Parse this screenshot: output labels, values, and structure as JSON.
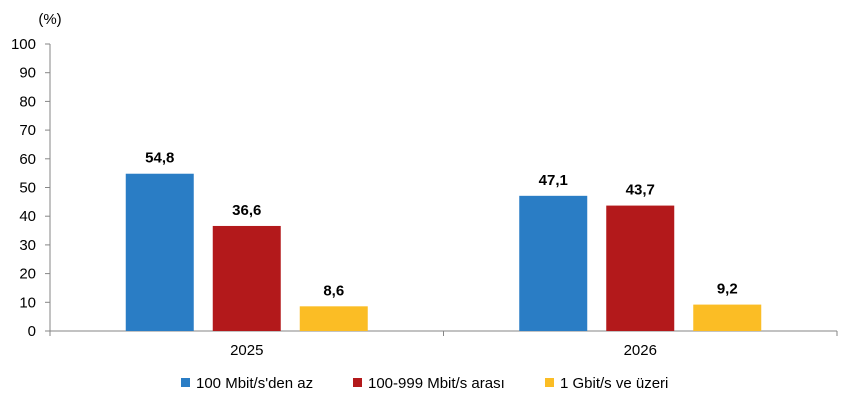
{
  "chart_data": {
    "type": "bar",
    "unit_label": "(%)",
    "categories": [
      "2025",
      "2026"
    ],
    "series": [
      {
        "name": "100 Mbit/s'den az",
        "color": "#2a7dc5",
        "values": [
          54.8,
          47.1
        ],
        "labels": [
          "54,8",
          "47,1"
        ]
      },
      {
        "name": "100-999 Mbit/s arası",
        "color": "#b3191b",
        "values": [
          36.6,
          43.7
        ],
        "labels": [
          "36,6",
          "43,7"
        ]
      },
      {
        "name": "1 Gbit/s ve üzeri",
        "color": "#fbbd25",
        "values": [
          8.6,
          9.2
        ],
        "labels": [
          "8,6",
          "9,2"
        ]
      }
    ],
    "ylim": [
      0,
      100
    ],
    "yticks": [
      0,
      10,
      20,
      30,
      40,
      50,
      60,
      70,
      80,
      90,
      100
    ],
    "grid": false,
    "legend_position": "bottom"
  }
}
